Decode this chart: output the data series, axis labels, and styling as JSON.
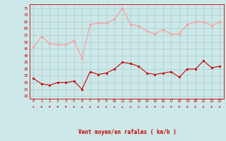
{
  "hours": [
    0,
    1,
    2,
    3,
    4,
    5,
    6,
    7,
    8,
    9,
    10,
    11,
    12,
    13,
    14,
    15,
    16,
    17,
    18,
    19,
    20,
    21,
    22,
    23
  ],
  "wind_avg": [
    23,
    19,
    18,
    20,
    20,
    21,
    15,
    28,
    26,
    27,
    30,
    35,
    34,
    32,
    27,
    26,
    27,
    28,
    24,
    30,
    30,
    36,
    31,
    32
  ],
  "wind_gust": [
    46,
    54,
    49,
    48,
    48,
    51,
    38,
    63,
    64,
    64,
    67,
    75,
    63,
    62,
    58,
    56,
    59,
    56,
    56,
    63,
    65,
    65,
    62,
    65
  ],
  "bg_color": "#cce8e8",
  "grid_color": "#aacccc",
  "avg_color": "#cc0000",
  "gust_color": "#ff9999",
  "xlabel": "Vent moyen/en rafales ( km/h )",
  "ylim": [
    8,
    78
  ],
  "yticks": [
    10,
    15,
    20,
    25,
    30,
    35,
    40,
    45,
    50,
    55,
    60,
    65,
    70,
    75
  ],
  "xlabel_color": "#cc0000",
  "tick_color": "#cc0000",
  "arrow_angles": [
    210,
    200,
    190,
    175,
    170,
    160,
    140,
    155,
    155,
    155,
    150,
    140,
    150,
    155,
    160,
    165,
    160,
    165,
    165,
    155,
    155,
    150,
    200,
    155
  ]
}
